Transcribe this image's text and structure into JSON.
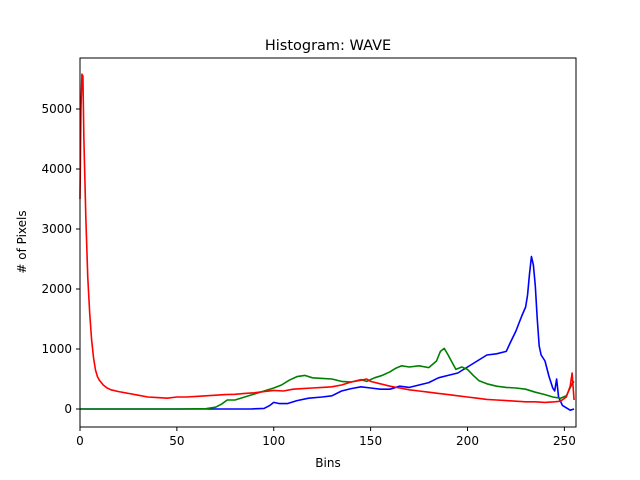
{
  "chart_data": {
    "type": "line",
    "title": "Histogram: WAVE",
    "xlabel": "Bins",
    "ylabel": "# of Pixels",
    "xlim": [
      0,
      256
    ],
    "ylim": [
      -300,
      5850
    ],
    "xticks": [
      0,
      50,
      100,
      150,
      200,
      250
    ],
    "yticks": [
      0,
      1000,
      2000,
      3000,
      4000,
      5000
    ],
    "grid": false,
    "legend": "none",
    "series": [
      {
        "color": "#0000ff",
        "points": [
          [
            0,
            0
          ],
          [
            60,
            0
          ],
          [
            75,
            0
          ],
          [
            88,
            0
          ],
          [
            95,
            10
          ],
          [
            98,
            60
          ],
          [
            100,
            110
          ],
          [
            103,
            90
          ],
          [
            107,
            90
          ],
          [
            112,
            140
          ],
          [
            118,
            180
          ],
          [
            125,
            200
          ],
          [
            130,
            220
          ],
          [
            135,
            300
          ],
          [
            140,
            340
          ],
          [
            145,
            370
          ],
          [
            150,
            350
          ],
          [
            155,
            330
          ],
          [
            160,
            330
          ],
          [
            165,
            380
          ],
          [
            170,
            360
          ],
          [
            175,
            400
          ],
          [
            180,
            440
          ],
          [
            185,
            520
          ],
          [
            190,
            560
          ],
          [
            195,
            600
          ],
          [
            200,
            700
          ],
          [
            205,
            800
          ],
          [
            210,
            900
          ],
          [
            215,
            920
          ],
          [
            220,
            960
          ],
          [
            222,
            1100
          ],
          [
            225,
            1300
          ],
          [
            228,
            1550
          ],
          [
            230,
            1700
          ],
          [
            231,
            1900
          ],
          [
            232,
            2250
          ],
          [
            233,
            2540
          ],
          [
            234,
            2400
          ],
          [
            235,
            2050
          ],
          [
            236,
            1500
          ],
          [
            237,
            1050
          ],
          [
            238,
            900
          ],
          [
            240,
            800
          ],
          [
            242,
            550
          ],
          [
            244,
            350
          ],
          [
            245,
            300
          ],
          [
            246,
            500
          ],
          [
            247,
            200
          ],
          [
            249,
            60
          ],
          [
            251,
            20
          ],
          [
            253,
            -20
          ],
          [
            255,
            0
          ]
        ]
      },
      {
        "color": "#008000",
        "points": [
          [
            0,
            0
          ],
          [
            50,
            0
          ],
          [
            65,
            5
          ],
          [
            70,
            30
          ],
          [
            73,
            80
          ],
          [
            76,
            150
          ],
          [
            80,
            150
          ],
          [
            85,
            200
          ],
          [
            90,
            250
          ],
          [
            95,
            300
          ],
          [
            100,
            350
          ],
          [
            104,
            400
          ],
          [
            108,
            480
          ],
          [
            112,
            540
          ],
          [
            116,
            560
          ],
          [
            120,
            520
          ],
          [
            125,
            510
          ],
          [
            130,
            500
          ],
          [
            135,
            460
          ],
          [
            140,
            450
          ],
          [
            145,
            490
          ],
          [
            148,
            460
          ],
          [
            152,
            520
          ],
          [
            156,
            560
          ],
          [
            160,
            620
          ],
          [
            163,
            680
          ],
          [
            166,
            720
          ],
          [
            170,
            700
          ],
          [
            175,
            720
          ],
          [
            180,
            690
          ],
          [
            184,
            800
          ],
          [
            186,
            960
          ],
          [
            188,
            1010
          ],
          [
            190,
            900
          ],
          [
            192,
            780
          ],
          [
            194,
            660
          ],
          [
            197,
            700
          ],
          [
            200,
            660
          ],
          [
            203,
            560
          ],
          [
            206,
            470
          ],
          [
            210,
            420
          ],
          [
            215,
            380
          ],
          [
            220,
            360
          ],
          [
            225,
            350
          ],
          [
            230,
            330
          ],
          [
            235,
            280
          ],
          [
            240,
            240
          ],
          [
            244,
            200
          ],
          [
            248,
            180
          ],
          [
            251,
            220
          ],
          [
            254,
            420
          ],
          [
            255,
            460
          ]
        ]
      },
      {
        "color": "#ff0000",
        "points": [
          [
            0,
            3500
          ],
          [
            0.5,
            5000
          ],
          [
            1,
            5580
          ],
          [
            1.5,
            5550
          ],
          [
            2,
            4500
          ],
          [
            3,
            3200
          ],
          [
            4,
            2200
          ],
          [
            5,
            1600
          ],
          [
            6,
            1150
          ],
          [
            7,
            850
          ],
          [
            8,
            650
          ],
          [
            9,
            540
          ],
          [
            10,
            480
          ],
          [
            12,
            400
          ],
          [
            14,
            350
          ],
          [
            16,
            320
          ],
          [
            20,
            290
          ],
          [
            25,
            260
          ],
          [
            30,
            230
          ],
          [
            35,
            200
          ],
          [
            40,
            190
          ],
          [
            45,
            180
          ],
          [
            50,
            200
          ],
          [
            55,
            200
          ],
          [
            60,
            210
          ],
          [
            65,
            220
          ],
          [
            70,
            230
          ],
          [
            75,
            240
          ],
          [
            80,
            245
          ],
          [
            85,
            260
          ],
          [
            90,
            270
          ],
          [
            95,
            290
          ],
          [
            100,
            310
          ],
          [
            105,
            300
          ],
          [
            110,
            330
          ],
          [
            115,
            340
          ],
          [
            120,
            350
          ],
          [
            125,
            360
          ],
          [
            130,
            370
          ],
          [
            135,
            400
          ],
          [
            140,
            450
          ],
          [
            145,
            480
          ],
          [
            148,
            500
          ],
          [
            150,
            460
          ],
          [
            155,
            420
          ],
          [
            160,
            380
          ],
          [
            165,
            350
          ],
          [
            170,
            320
          ],
          [
            175,
            300
          ],
          [
            180,
            280
          ],
          [
            185,
            260
          ],
          [
            190,
            240
          ],
          [
            195,
            220
          ],
          [
            200,
            200
          ],
          [
            205,
            180
          ],
          [
            210,
            160
          ],
          [
            215,
            150
          ],
          [
            220,
            140
          ],
          [
            225,
            130
          ],
          [
            230,
            120
          ],
          [
            235,
            120
          ],
          [
            240,
            110
          ],
          [
            245,
            120
          ],
          [
            248,
            130
          ],
          [
            251,
            200
          ],
          [
            253,
            380
          ],
          [
            254,
            600
          ],
          [
            255,
            150
          ]
        ]
      }
    ]
  }
}
